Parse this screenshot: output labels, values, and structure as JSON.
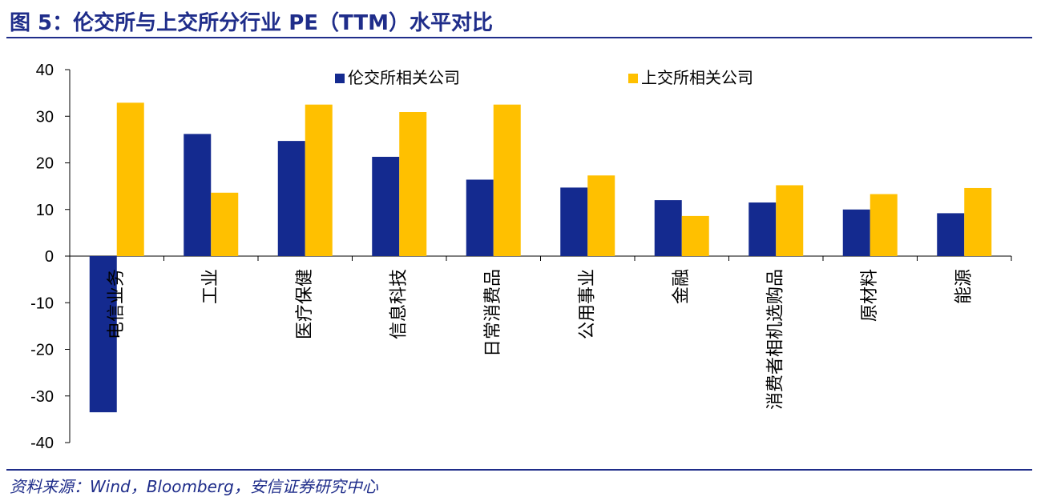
{
  "header": {
    "title": "图 5：伦交所与上交所分行业 PE（TTM）水平对比"
  },
  "footer": {
    "source": "资料来源：Wind，Bloomberg，安信证券研究中心"
  },
  "colors": {
    "series1": "#142a8f",
    "series2": "#ffc000",
    "rule": "#1f2d8a"
  },
  "chart_data": {
    "type": "bar",
    "categories": [
      "电信业务",
      "工业",
      "医疗保健",
      "信息科技",
      "日常消费品",
      "公用事业",
      "金融",
      "消费者相机选购品",
      "原材料",
      "能源"
    ],
    "series": [
      {
        "name": "伦交所相关公司",
        "values": [
          -33.5,
          26.2,
          24.7,
          21.3,
          16.4,
          14.7,
          12.0,
          11.5,
          10.0,
          9.2
        ]
      },
      {
        "name": "上交所相关公司",
        "values": [
          32.9,
          13.6,
          32.5,
          30.9,
          32.5,
          17.3,
          8.6,
          15.2,
          13.3,
          14.6
        ]
      }
    ],
    "yticks": [
      "40",
      "30",
      "20",
      "10",
      "0",
      "-10",
      "-20",
      "-30",
      "-40"
    ],
    "ylim": [
      -40,
      40
    ],
    "legend_position": "top",
    "grid": false
  }
}
